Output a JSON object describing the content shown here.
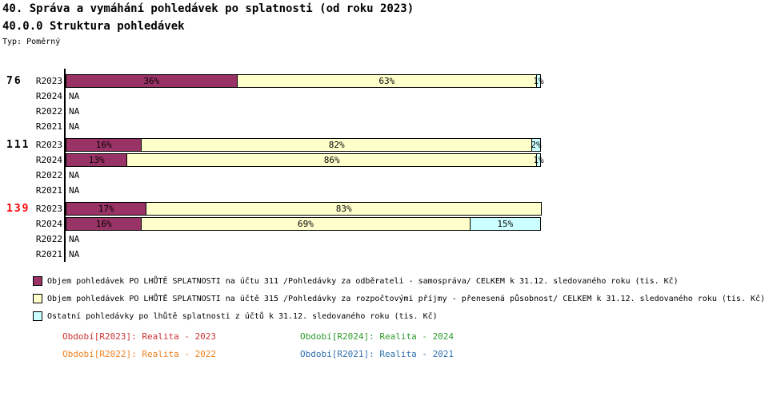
{
  "header": {
    "title": "40. Správa a vymáhání pohledávek po splatnosti (od roku 2023)",
    "subtitle": "40.0.0 Struktura pohledávek",
    "type_label": "Typ: Poměrný"
  },
  "chart_data": {
    "type": "bar",
    "orientation": "horizontal",
    "stacked": true,
    "value_unit": "%",
    "xlim": [
      0,
      100
    ],
    "na_label": "NA",
    "series": [
      {
        "name": "Objem pohledávek PO LHŮTĚ SPLATNOSTI na účtu 311 /Pohledávky za odběrateli - samospráva/ CELKEM k 31.12. sledovaného roku (tis. Kč)",
        "color": "#993366"
      },
      {
        "name": "Objem pohledávek PO LHŮTĚ SPLATNOSTI na účtě 315 /Pohledávky za rozpočtovými příjmy - přenesená působnost/ CELKEM k 31.12. sledovaného roku (tis. Kč)",
        "color": "#FFFFCC"
      },
      {
        "name": "Ostatní pohledávky po lhůtě splatnosti z účtů k 31.12. sledovaného roku (tis. Kč)",
        "color": "#CCFFFF"
      }
    ],
    "groups": [
      {
        "label": "76",
        "label_color": "#000000",
        "rows": [
          {
            "period": "R2023",
            "segments": [
              36,
              63,
              1
            ]
          },
          {
            "period": "R2024",
            "segments": null
          },
          {
            "period": "R2022",
            "segments": null
          },
          {
            "period": "R2021",
            "segments": null
          }
        ]
      },
      {
        "label": "111",
        "label_color": "#000000",
        "rows": [
          {
            "period": "R2023",
            "segments": [
              16,
              82,
              2
            ]
          },
          {
            "period": "R2024",
            "segments": [
              13,
              86,
              1
            ]
          },
          {
            "period": "R2022",
            "segments": null
          },
          {
            "period": "R2021",
            "segments": null
          }
        ]
      },
      {
        "label": "139",
        "label_color": "#FF0000",
        "rows": [
          {
            "period": "R2023",
            "segments": [
              17,
              83,
              0
            ]
          },
          {
            "period": "R2024",
            "segments": [
              16,
              69,
              15
            ]
          },
          {
            "period": "R2022",
            "segments": null
          },
          {
            "period": "R2021",
            "segments": null
          }
        ]
      }
    ],
    "period_legend": [
      {
        "label": "Období[R2023]: Realita - 2023",
        "color": "#CC3333"
      },
      {
        "label": "Období[R2024]: Realita - 2024",
        "color": "#2E9B2E"
      },
      {
        "label": "Období[R2022]: Realita - 2022",
        "color": "#F08223"
      },
      {
        "label": "Období[R2021]: Realita - 2021",
        "color": "#3070AF"
      }
    ]
  }
}
